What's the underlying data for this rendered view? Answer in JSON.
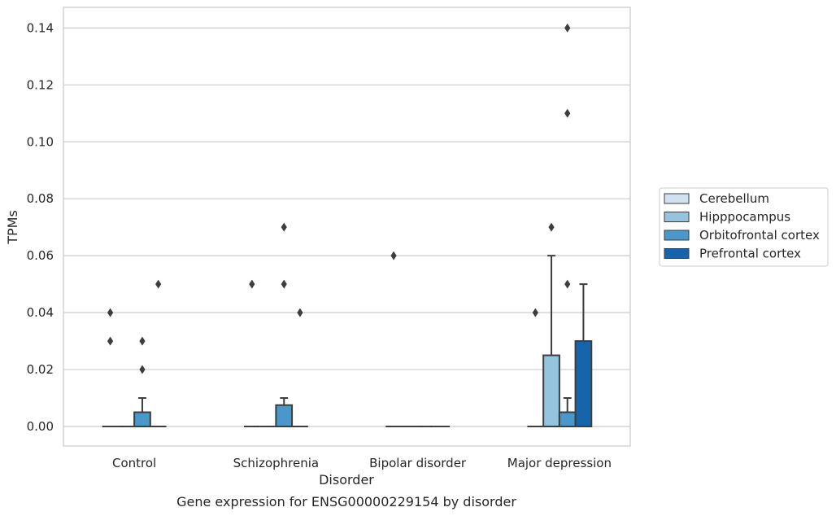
{
  "chart_data": {
    "type": "box",
    "title": "",
    "caption": "Gene expression for ENSG00000229154 by disorder",
    "xlabel": "Disorder",
    "ylabel": "TPMs",
    "ylim": [
      -0.007,
      0.147
    ],
    "yticks": [
      0.0,
      0.02,
      0.04,
      0.06,
      0.08,
      0.1,
      0.12,
      0.14
    ],
    "ytick_labels": [
      "0.00",
      "0.02",
      "0.04",
      "0.06",
      "0.08",
      "0.10",
      "0.12",
      "0.14"
    ],
    "grid": "horizontal",
    "legend_position": "right",
    "categories": [
      "Control",
      "Schizophrenia",
      "Bipolar disorder",
      "Major depression"
    ],
    "series": [
      {
        "name": "Cerebellum",
        "color": "#d0e1f2",
        "boxes": [
          {
            "q1": 0,
            "median": 0,
            "q3": 0,
            "whisker_low": 0,
            "whisker_high": 0,
            "outliers": [
              0.04,
              0.03
            ]
          },
          {
            "q1": 0,
            "median": 0,
            "q3": 0,
            "whisker_low": 0,
            "whisker_high": 0,
            "outliers": [
              0.05
            ]
          },
          {
            "q1": 0,
            "median": 0,
            "q3": 0,
            "whisker_low": 0,
            "whisker_high": 0,
            "outliers": [
              0.06
            ]
          },
          {
            "q1": 0,
            "median": 0,
            "q3": 0,
            "whisker_low": 0,
            "whisker_high": 0,
            "outliers": [
              0.04
            ]
          }
        ]
      },
      {
        "name": "Hipppocampus",
        "color": "#94c4df",
        "boxes": [
          {
            "q1": 0,
            "median": 0,
            "q3": 0,
            "whisker_low": 0,
            "whisker_high": 0,
            "outliers": []
          },
          {
            "q1": 0,
            "median": 0,
            "q3": 0,
            "whisker_low": 0,
            "whisker_high": 0,
            "outliers": []
          },
          {
            "q1": 0,
            "median": 0,
            "q3": 0,
            "whisker_low": 0,
            "whisker_high": 0,
            "outliers": []
          },
          {
            "q1": 0,
            "median": 0,
            "q3": 0.025,
            "whisker_low": 0,
            "whisker_high": 0.06,
            "outliers": [
              0.07
            ]
          }
        ]
      },
      {
        "name": "Orbitofrontal cortex",
        "color": "#4a98c9",
        "boxes": [
          {
            "q1": 0,
            "median": 0,
            "q3": 0.005,
            "whisker_low": 0,
            "whisker_high": 0.01,
            "outliers": [
              0.03,
              0.02
            ]
          },
          {
            "q1": 0,
            "median": 0,
            "q3": 0.0075,
            "whisker_low": 0,
            "whisker_high": 0.01,
            "outliers": [
              0.07,
              0.05
            ]
          },
          {
            "q1": 0,
            "median": 0,
            "q3": 0,
            "whisker_low": 0,
            "whisker_high": 0,
            "outliers": []
          },
          {
            "q1": 0,
            "median": 0,
            "q3": 0.005,
            "whisker_low": 0,
            "whisker_high": 0.01,
            "outliers": [
              0.14,
              0.11,
              0.05
            ]
          }
        ]
      },
      {
        "name": "Prefrontal cortex",
        "color": "#1764ab",
        "boxes": [
          {
            "q1": 0,
            "median": 0,
            "q3": 0,
            "whisker_low": 0,
            "whisker_high": 0,
            "outliers": [
              0.05
            ]
          },
          {
            "q1": 0,
            "median": 0,
            "q3": 0,
            "whisker_low": 0,
            "whisker_high": 0,
            "outliers": [
              0.04
            ]
          },
          {
            "q1": 0,
            "median": 0,
            "q3": 0,
            "whisker_low": 0,
            "whisker_high": 0,
            "outliers": []
          },
          {
            "q1": 0,
            "median": 0,
            "q3": 0.03,
            "whisker_low": 0,
            "whisker_high": 0.05,
            "outliers": []
          }
        ]
      }
    ],
    "colors": {
      "grid": "#cccccc",
      "frame": "#cccccc",
      "box_edge": "#3d3d3d",
      "text": "#262626"
    }
  }
}
